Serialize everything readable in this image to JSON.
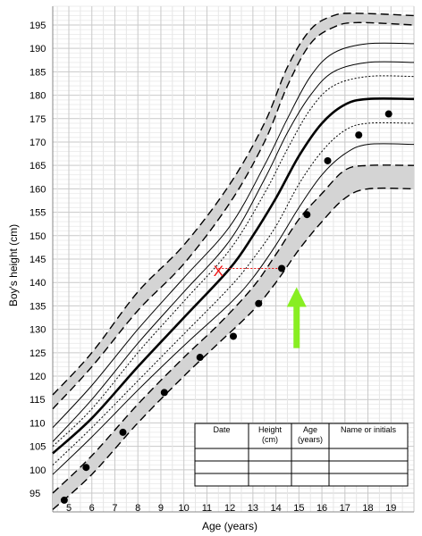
{
  "chart_data": {
    "type": "line",
    "xlabel": "Age (years)",
    "ylabel": "Boy's height (cm)",
    "xlim": [
      4.3,
      20
    ],
    "ylim": [
      91,
      199
    ],
    "x_ticks": [
      5,
      6,
      7,
      8,
      9,
      10,
      11,
      12,
      13,
      14,
      15,
      16,
      17,
      18,
      19
    ],
    "y_ticks": [
      95,
      100,
      105,
      110,
      115,
      120,
      125,
      130,
      135,
      140,
      145,
      150,
      155,
      160,
      165,
      170,
      175,
      180,
      185,
      190,
      195
    ],
    "grid": true,
    "bands": [
      {
        "color": "#d4d4d4",
        "lower": [
          [
            4.3,
            113
          ],
          [
            6,
            122
          ],
          [
            8,
            134
          ],
          [
            10,
            144
          ],
          [
            12,
            157
          ],
          [
            13.5,
            170
          ],
          [
            14.5,
            182
          ],
          [
            15.5,
            191
          ],
          [
            16.5,
            194.5
          ],
          [
            17.5,
            195.5
          ],
          [
            20,
            195
          ]
        ],
        "upper": [
          [
            4.3,
            116
          ],
          [
            6,
            125
          ],
          [
            8,
            138
          ],
          [
            10,
            148
          ],
          [
            12,
            161
          ],
          [
            13.5,
            174
          ],
          [
            14.5,
            186
          ],
          [
            15.5,
            194
          ],
          [
            16.5,
            197
          ],
          [
            17.5,
            197.5
          ],
          [
            20,
            197
          ]
        ]
      },
      {
        "color": "#d4d4d4",
        "lower": [
          [
            4.3,
            91.5
          ],
          [
            6,
            99
          ],
          [
            8,
            110
          ],
          [
            10,
            120
          ],
          [
            11.5,
            127
          ],
          [
            13,
            134
          ],
          [
            14,
            140
          ],
          [
            15,
            147
          ],
          [
            16,
            153
          ],
          [
            17,
            158
          ],
          [
            18,
            160
          ],
          [
            20,
            160
          ]
        ],
        "upper": [
          [
            4.3,
            95
          ],
          [
            6,
            103
          ],
          [
            8,
            114
          ],
          [
            10,
            124
          ],
          [
            11.5,
            131
          ],
          [
            13,
            139
          ],
          [
            14,
            146
          ],
          [
            15,
            153.5
          ],
          [
            16,
            159
          ],
          [
            17,
            164
          ],
          [
            18,
            165
          ],
          [
            20,
            165
          ]
        ]
      }
    ],
    "series": [
      {
        "style": "solid-thin",
        "points": [
          [
            4.3,
            109
          ],
          [
            6,
            118
          ],
          [
            8,
            130
          ],
          [
            10,
            141
          ],
          [
            12,
            152
          ],
          [
            13.5,
            165
          ],
          [
            14.5,
            175
          ],
          [
            15.5,
            184
          ],
          [
            16.5,
            189
          ],
          [
            18,
            191
          ],
          [
            20,
            191
          ]
        ]
      },
      {
        "style": "solid-thin",
        "points": [
          [
            4.3,
            106
          ],
          [
            6,
            115
          ],
          [
            8,
            127
          ],
          [
            10,
            138
          ],
          [
            12,
            149
          ],
          [
            13.5,
            162
          ],
          [
            14.5,
            172
          ],
          [
            15.5,
            180
          ],
          [
            16.5,
            185
          ],
          [
            18,
            187
          ],
          [
            20,
            187
          ]
        ]
      },
      {
        "style": "dotted",
        "points": [
          [
            4.3,
            105
          ],
          [
            6,
            113
          ],
          [
            8,
            125
          ],
          [
            10,
            136
          ],
          [
            12,
            147
          ],
          [
            13.5,
            159
          ],
          [
            14.5,
            168.5
          ],
          [
            15.5,
            177
          ],
          [
            16.5,
            182
          ],
          [
            18,
            184
          ],
          [
            20,
            184
          ]
        ]
      },
      {
        "style": "solid-thick",
        "points": [
          [
            4.3,
            103.5
          ],
          [
            6,
            111
          ],
          [
            8,
            122
          ],
          [
            10,
            132.5
          ],
          [
            12,
            143
          ],
          [
            13,
            150
          ],
          [
            14,
            158
          ],
          [
            15,
            167
          ],
          [
            16,
            174
          ],
          [
            17,
            178
          ],
          [
            18,
            179.2
          ],
          [
            20,
            179.2
          ]
        ]
      },
      {
        "style": "dotted",
        "points": [
          [
            4.3,
            101
          ],
          [
            6,
            109
          ],
          [
            8,
            119
          ],
          [
            10,
            129
          ],
          [
            12,
            139
          ],
          [
            13,
            145
          ],
          [
            14,
            152
          ],
          [
            15,
            161
          ],
          [
            16,
            168
          ],
          [
            17,
            172.5
          ],
          [
            18,
            174
          ],
          [
            20,
            174
          ]
        ]
      },
      {
        "style": "solid-thin",
        "points": [
          [
            4.3,
            99
          ],
          [
            6,
            107
          ],
          [
            8,
            117
          ],
          [
            10,
            126.5
          ],
          [
            12,
            135.5
          ],
          [
            13,
            141
          ],
          [
            14,
            148
          ],
          [
            15,
            156
          ],
          [
            16,
            163
          ],
          [
            17,
            167.5
          ],
          [
            18,
            169.5
          ],
          [
            20,
            169.5
          ]
        ]
      }
    ],
    "points": [
      {
        "x": 4.8,
        "y": 93.5
      },
      {
        "x": 5.75,
        "y": 100.5
      },
      {
        "x": 7.35,
        "y": 108
      },
      {
        "x": 9.15,
        "y": 116.5
      },
      {
        "x": 10.7,
        "y": 124
      },
      {
        "x": 12.15,
        "y": 128.5
      },
      {
        "x": 13.25,
        "y": 135.5
      },
      {
        "x": 14.25,
        "y": 143
      },
      {
        "x": 15.35,
        "y": 154.5
      },
      {
        "x": 16.25,
        "y": 166
      },
      {
        "x": 17.6,
        "y": 171.5
      },
      {
        "x": 18.9,
        "y": 176
      }
    ],
    "annotations": {
      "cross": {
        "x": 11.5,
        "y": 142.5,
        "symbol": "X",
        "color": "#ee1111"
      },
      "guide": {
        "from": [
          11.5,
          143
        ],
        "to": [
          14.25,
          143
        ],
        "color": "#ee1111"
      },
      "arrow": {
        "x": 14.9,
        "y_tail": 126,
        "y_head": 139,
        "color": "#88ee22"
      }
    },
    "table": {
      "headers": [
        [
          "Date"
        ],
        [
          "Height",
          "(cm)"
        ],
        [
          "Age",
          "(years)"
        ],
        [
          "Name or initials"
        ]
      ],
      "rows": 3
    }
  }
}
